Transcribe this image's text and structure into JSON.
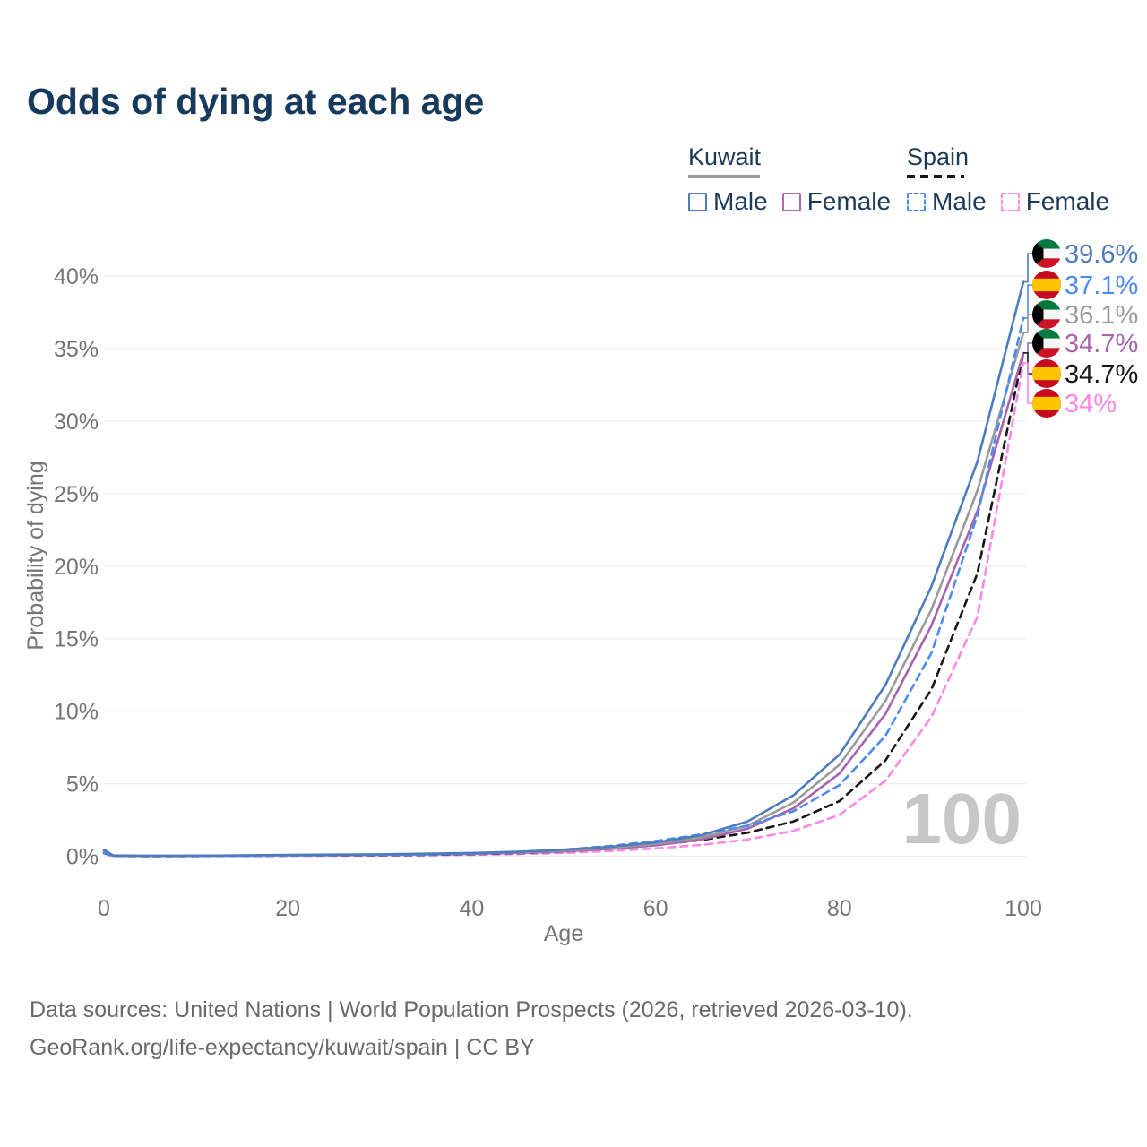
{
  "chart_data": {
    "type": "line",
    "title": "Odds of dying at each age",
    "xlabel": "Age",
    "ylabel": "Probability of dying",
    "xlim": [
      0,
      100
    ],
    "ylim_percent": [
      0,
      40
    ],
    "x_ticks": [
      0,
      20,
      40,
      60,
      80,
      100
    ],
    "y_ticks_percent": [
      0,
      5,
      10,
      15,
      20,
      25,
      30,
      35,
      40
    ],
    "grid": true,
    "legend_position": "top-right",
    "age_indicator_watermark": "100",
    "ages": [
      0,
      1,
      5,
      10,
      15,
      20,
      25,
      30,
      35,
      40,
      45,
      50,
      55,
      60,
      65,
      70,
      75,
      80,
      85,
      90,
      95,
      100
    ],
    "series": [
      {
        "name": "Kuwait Male",
        "country": "Kuwait",
        "sex": "Male",
        "color": "#4d7cbe",
        "line_style": "solid",
        "flag": "kuwait",
        "end_label": "39.6%",
        "values": [
          0.45,
          0.05,
          0.03,
          0.04,
          0.06,
          0.09,
          0.11,
          0.13,
          0.17,
          0.22,
          0.31,
          0.45,
          0.65,
          0.95,
          1.45,
          2.4,
          4.2,
          7.0,
          11.8,
          18.6,
          27.2,
          39.6
        ]
      },
      {
        "name": "Spain Male",
        "country": "Spain",
        "sex": "Male",
        "color": "#4b8bf4",
        "line_style": "dashed",
        "flag": "spain",
        "end_label": "37.1%",
        "values": [
          0.25,
          0.02,
          0.01,
          0.015,
          0.04,
          0.06,
          0.07,
          0.09,
          0.12,
          0.18,
          0.28,
          0.45,
          0.7,
          1.05,
          1.5,
          2.1,
          3.1,
          4.9,
          8.3,
          14.0,
          23.5,
          37.1
        ]
      },
      {
        "name": "Kuwait Both sexes",
        "country": "Kuwait",
        "sex": "Both",
        "color": "#9a9a9a",
        "line_style": "solid",
        "flag": "kuwait",
        "end_label": "36.1%",
        "values": [
          0.4,
          0.04,
          0.025,
          0.035,
          0.05,
          0.07,
          0.09,
          0.11,
          0.14,
          0.19,
          0.27,
          0.39,
          0.57,
          0.85,
          1.3,
          2.1,
          3.7,
          6.3,
          10.7,
          17.0,
          25.2,
          36.1
        ]
      },
      {
        "name": "Kuwait Female",
        "country": "Kuwait",
        "sex": "Female",
        "color": "#a963ad",
        "line_style": "solid",
        "flag": "kuwait",
        "end_label": "34.7%",
        "values": [
          0.35,
          0.035,
          0.02,
          0.03,
          0.04,
          0.055,
          0.07,
          0.09,
          0.12,
          0.16,
          0.23,
          0.33,
          0.5,
          0.75,
          1.15,
          1.9,
          3.3,
          5.7,
          9.8,
          15.9,
          23.8,
          34.7
        ]
      },
      {
        "name": "Spain Both sexes",
        "country": "Spain",
        "sex": "Both",
        "color": "#161616",
        "line_style": "dashed",
        "flag": "spain",
        "end_label": "34.7%",
        "values": [
          0.22,
          0.018,
          0.009,
          0.012,
          0.03,
          0.045,
          0.055,
          0.07,
          0.09,
          0.14,
          0.21,
          0.33,
          0.52,
          0.78,
          1.12,
          1.62,
          2.4,
          3.8,
          6.6,
          11.5,
          19.5,
          34.7
        ]
      },
      {
        "name": "Spain Female",
        "country": "Spain",
        "sex": "Female",
        "color": "#fb87e7",
        "line_style": "dashed",
        "flag": "spain",
        "end_label": "34%",
        "values": [
          0.2,
          0.015,
          0.008,
          0.01,
          0.02,
          0.03,
          0.04,
          0.05,
          0.07,
          0.1,
          0.15,
          0.23,
          0.36,
          0.54,
          0.78,
          1.15,
          1.75,
          2.85,
          5.2,
          9.6,
          16.5,
          34.0
        ]
      }
    ]
  },
  "legend": {
    "groups": [
      {
        "label": "Kuwait",
        "underline_style": "solid",
        "underline_color": "#9a9a9a",
        "items": [
          {
            "label": "Male",
            "color": "#4d7cbe",
            "dashed": false
          },
          {
            "label": "Female",
            "color": "#b168af",
            "dashed": false
          }
        ]
      },
      {
        "label": "Spain",
        "underline_style": "dashed",
        "underline_color": "#161616",
        "items": [
          {
            "label": "Male",
            "color": "#4b8bf4",
            "dashed": true
          },
          {
            "label": "Female",
            "color": "#fc8be0",
            "dashed": true
          }
        ]
      }
    ]
  },
  "footer": {
    "line1": "Data sources: United Nations | World Population Prospects (2026, retrieved 2026-03-10).",
    "line2": "GeoRank.org/life-expectancy/kuwait/spain | CC BY"
  },
  "colors": {
    "title_text": "#173a5c",
    "axis_text": "#757575",
    "gridline": "#ececec",
    "watermark": "#c7c7c7",
    "kuwait_flag": [
      "#007a3d",
      "#f5f5f5",
      "#ce1126",
      "#000000"
    ],
    "spain_flag": [
      "#c60b1e",
      "#ffc400"
    ]
  }
}
